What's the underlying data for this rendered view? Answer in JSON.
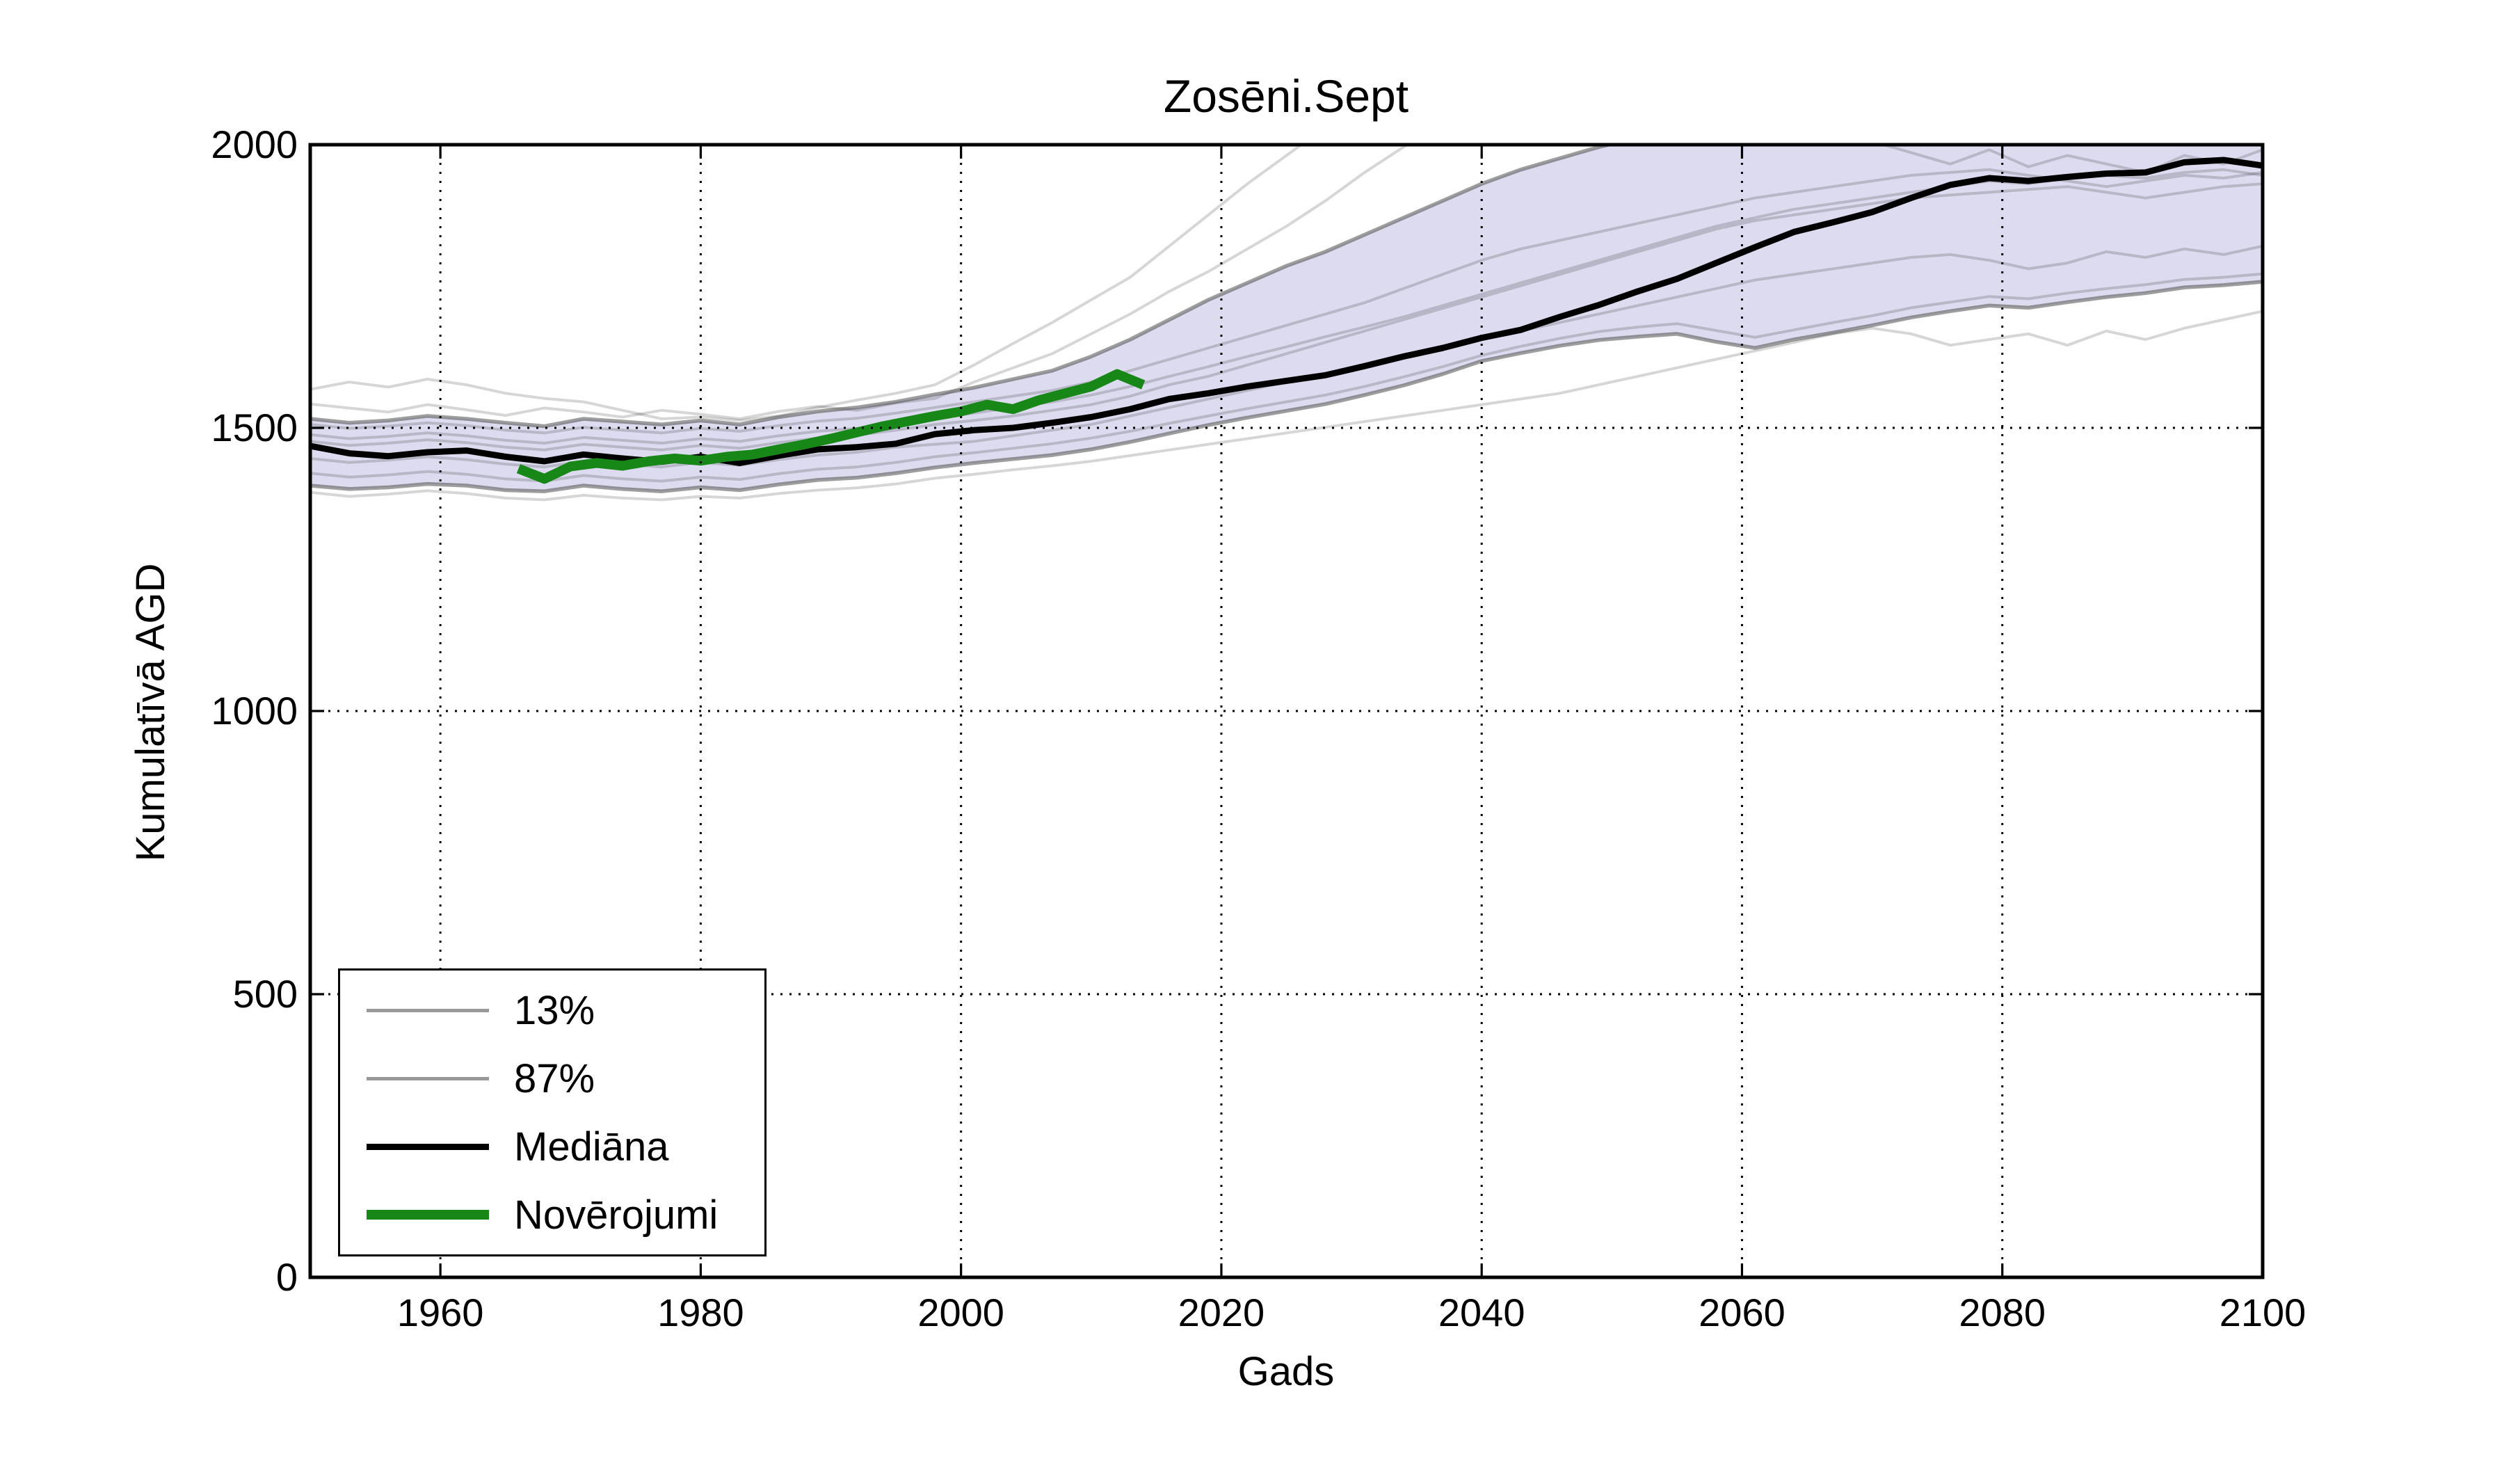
{
  "figure": {
    "title": "Zosēni.Sept",
    "xlabel": "Gads",
    "ylabel": "Kumulatīvā AGD"
  },
  "legend": {
    "items": [
      {
        "label": "13%",
        "color": "#999999",
        "thickness": 5
      },
      {
        "label": "87%",
        "color": "#999999",
        "thickness": 5
      },
      {
        "label": "Mediāna",
        "color": "#000000",
        "thickness": 9
      },
      {
        "label": "Novērojumi",
        "color": "#178717",
        "thickness": 14
      }
    ]
  },
  "chart_data": {
    "type": "line",
    "title": "Zosēni.Sept",
    "xlabel": "Gads",
    "ylabel": "Kumulatīvā AGD",
    "xlim": [
      1950,
      2100
    ],
    "ylim": [
      0,
      2000
    ],
    "xticks": [
      1960,
      1980,
      2000,
      2020,
      2040,
      2060,
      2080,
      2100
    ],
    "yticks": [
      0,
      500,
      1000,
      1500,
      2000
    ],
    "grid": true,
    "grid_style": "dotted",
    "legend_position": "lower left",
    "band_fill_color": "#dcdbef",
    "x_years": [
      1950,
      1953,
      1956,
      1959,
      1962,
      1965,
      1968,
      1971,
      1974,
      1977,
      1980,
      1983,
      1986,
      1989,
      1992,
      1995,
      1998,
      2001,
      2004,
      2007,
      2010,
      2013,
      2016,
      2019,
      2022,
      2025,
      2028,
      2031,
      2034,
      2037,
      2040,
      2043,
      2046,
      2049,
      2052,
      2055,
      2058,
      2061,
      2064,
      2067,
      2070,
      2073,
      2076,
      2079,
      2082,
      2085,
      2088,
      2091,
      2094,
      2097,
      2100
    ],
    "series": [
      {
        "name": "13%",
        "role": "lower_percentile",
        "color": "#4f4f4f",
        "opacity": 0.55,
        "width": 5.5,
        "values": [
          1398,
          1392,
          1395,
          1401,
          1398,
          1390,
          1388,
          1398,
          1392,
          1388,
          1395,
          1390,
          1400,
          1408,
          1412,
          1420,
          1430,
          1438,
          1445,
          1452,
          1462,
          1475,
          1490,
          1505,
          1518,
          1530,
          1542,
          1558,
          1575,
          1595,
          1618,
          1632,
          1645,
          1655,
          1661,
          1666,
          1652,
          1641,
          1656,
          1668,
          1681,
          1695,
          1706,
          1716,
          1712,
          1722,
          1731,
          1738,
          1748,
          1752,
          1758
        ]
      },
      {
        "name": "87%",
        "role": "upper_percentile",
        "color": "#4f4f4f",
        "opacity": 0.55,
        "width": 5.5,
        "values": [
          1516,
          1509,
          1513,
          1521,
          1516,
          1509,
          1503,
          1516,
          1511,
          1506,
          1513,
          1506,
          1519,
          1529,
          1536,
          1546,
          1559,
          1571,
          1586,
          1601,
          1626,
          1656,
          1691,
          1726,
          1756,
          1786,
          1811,
          1841,
          1871,
          1901,
          1931,
          1956,
          1976,
          1996,
          2012,
          2026,
          2041,
          2051,
          2061,
          2056,
          2061,
          2066,
          2061,
          2056,
          2046,
          2051,
          2056,
          2051,
          2061,
          2056,
          2051
        ]
      },
      {
        "name": "Mediāna",
        "role": "median",
        "color": "#000000",
        "opacity": 1,
        "width": 9,
        "values": [
          1468,
          1455,
          1450,
          1457,
          1460,
          1449,
          1441,
          1453,
          1446,
          1440,
          1449,
          1438,
          1451,
          1462,
          1466,
          1472,
          1489,
          1496,
          1500,
          1509,
          1519,
          1533,
          1551,
          1561,
          1573,
          1583,
          1593,
          1609,
          1626,
          1641,
          1659,
          1673,
          1696,
          1717,
          1741,
          1763,
          1791,
          1819,
          1846,
          1863,
          1881,
          1906,
          1929,
          1941,
          1936,
          1943,
          1949,
          1951,
          1969,
          1973,
          1963
        ]
      },
      {
        "name": "Novērojumi",
        "role": "observations",
        "color": "#178717",
        "opacity": 1,
        "width": 14,
        "x": [
          1966,
          1968,
          1970,
          1972,
          1974,
          1976,
          1978,
          1980,
          1982,
          1984,
          1986,
          1988,
          1990,
          1992,
          1994,
          1996,
          1998,
          2000,
          2002,
          2004,
          2006,
          2008,
          2010,
          2012,
          2014
        ],
        "values": [
          1428,
          1410,
          1432,
          1438,
          1433,
          1441,
          1446,
          1442,
          1449,
          1453,
          1462,
          1471,
          1481,
          1492,
          1503,
          1512,
          1521,
          1529,
          1541,
          1533,
          1549,
          1561,
          1573,
          1595,
          1576
        ]
      }
    ],
    "ensemble_members": {
      "color": "#000000",
      "opacity": 0.16,
      "width": 4,
      "members": [
        [
          1568,
          1581,
          1572,
          1586,
          1576,
          1561,
          1552,
          1546,
          1531,
          1516,
          1519,
          1513,
          1521,
          1536,
          1549,
          1561,
          1576,
          1611,
          1649,
          1686,
          1726,
          1766,
          1821,
          1876,
          1931,
          1981,
          2031,
          2071,
          2091,
          2111,
          2121,
          2131,
          2141,
          2146,
          2151,
          2156,
          2161,
          2166,
          2171,
          2176,
          2181,
          2186,
          2191,
          2196,
          2199,
          2203,
          2206,
          2209,
          2212,
          2215,
          2218
        ],
        [
          1542,
          1535,
          1528,
          1541,
          1532,
          1522,
          1535,
          1528,
          1519,
          1531,
          1524,
          1516,
          1529,
          1538,
          1531,
          1544,
          1552,
          1581,
          1606,
          1631,
          1666,
          1701,
          1741,
          1776,
          1816,
          1856,
          1901,
          1951,
          1996,
          2031,
          2061,
          2051,
          2071,
          2056,
          2066,
          2046,
          2056,
          2066,
          2046,
          2026,
          2006,
          1986,
          1966,
          1991,
          1961,
          1981,
          1966,
          1951,
          1981,
          1966,
          1991
        ],
        [
          1506,
          1499,
          1503,
          1509,
          1504,
          1496,
          1491,
          1501,
          1496,
          1491,
          1499,
          1494,
          1504,
          1512,
          1517,
          1526,
          1536,
          1546,
          1556,
          1566,
          1581,
          1601,
          1621,
          1641,
          1661,
          1681,
          1701,
          1721,
          1746,
          1771,
          1796,
          1816,
          1831,
          1846,
          1861,
          1876,
          1891,
          1906,
          1916,
          1926,
          1936,
          1946,
          1951,
          1956,
          1946,
          1936,
          1926,
          1936,
          1946,
          1941,
          1951
        ],
        [
          1476,
          1469,
          1473,
          1479,
          1474,
          1466,
          1461,
          1471,
          1466,
          1461,
          1469,
          1464,
          1474,
          1482,
          1487,
          1496,
          1506,
          1513,
          1521,
          1531,
          1541,
          1556,
          1576,
          1591,
          1611,
          1631,
          1651,
          1671,
          1691,
          1711,
          1731,
          1751,
          1771,
          1791,
          1811,
          1831,
          1851,
          1866,
          1876,
          1886,
          1896,
          1906,
          1911,
          1916,
          1921,
          1926,
          1916,
          1906,
          1916,
          1926,
          1931
        ],
        [
          1446,
          1439,
          1443,
          1449,
          1444,
          1436,
          1431,
          1441,
          1436,
          1431,
          1439,
          1434,
          1444,
          1452,
          1457,
          1466,
          1471,
          1476,
          1486,
          1496,
          1506,
          1521,
          1536,
          1551,
          1566,
          1581,
          1596,
          1611,
          1626,
          1641,
          1656,
          1671,
          1686,
          1701,
          1716,
          1731,
          1746,
          1761,
          1771,
          1781,
          1791,
          1801,
          1806,
          1796,
          1781,
          1791,
          1811,
          1801,
          1816,
          1806,
          1821
        ],
        [
          1386,
          1379,
          1383,
          1389,
          1384,
          1376,
          1373,
          1381,
          1376,
          1373,
          1379,
          1376,
          1384,
          1390,
          1394,
          1401,
          1411,
          1418,
          1426,
          1433,
          1441,
          1451,
          1461,
          1471,
          1481,
          1491,
          1501,
          1511,
          1521,
          1531,
          1541,
          1551,
          1561,
          1576,
          1591,
          1606,
          1621,
          1636,
          1651,
          1666,
          1676,
          1666,
          1646,
          1656,
          1666,
          1646,
          1671,
          1656,
          1676,
          1691,
          1706
        ],
        [
          1488,
          1481,
          1485,
          1491,
          1486,
          1478,
          1473,
          1483,
          1478,
          1473,
          1481,
          1476,
          1486,
          1494,
          1499,
          1508,
          1518,
          1526,
          1536,
          1546,
          1558,
          1573,
          1591,
          1608,
          1626,
          1643,
          1661,
          1678,
          1696,
          1716,
          1736,
          1756,
          1776,
          1796,
          1816,
          1836,
          1856,
          1871,
          1886,
          1896,
          1906,
          1916,
          1926,
          1936,
          1931,
          1941,
          1946,
          1941,
          1951,
          1956,
          1946
        ],
        [
          1420,
          1413,
          1417,
          1423,
          1418,
          1410,
          1406,
          1416,
          1410,
          1406,
          1413,
          1409,
          1419,
          1427,
          1431,
          1439,
          1449,
          1456,
          1464,
          1472,
          1482,
          1494,
          1508,
          1521,
          1534,
          1546,
          1558,
          1573,
          1590,
          1608,
          1628,
          1644,
          1658,
          1670,
          1678,
          1684,
          1672,
          1660,
          1673,
          1686,
          1698,
          1712,
          1722,
          1732,
          1728,
          1738,
          1746,
          1753,
          1762,
          1766,
          1772
        ]
      ]
    }
  }
}
